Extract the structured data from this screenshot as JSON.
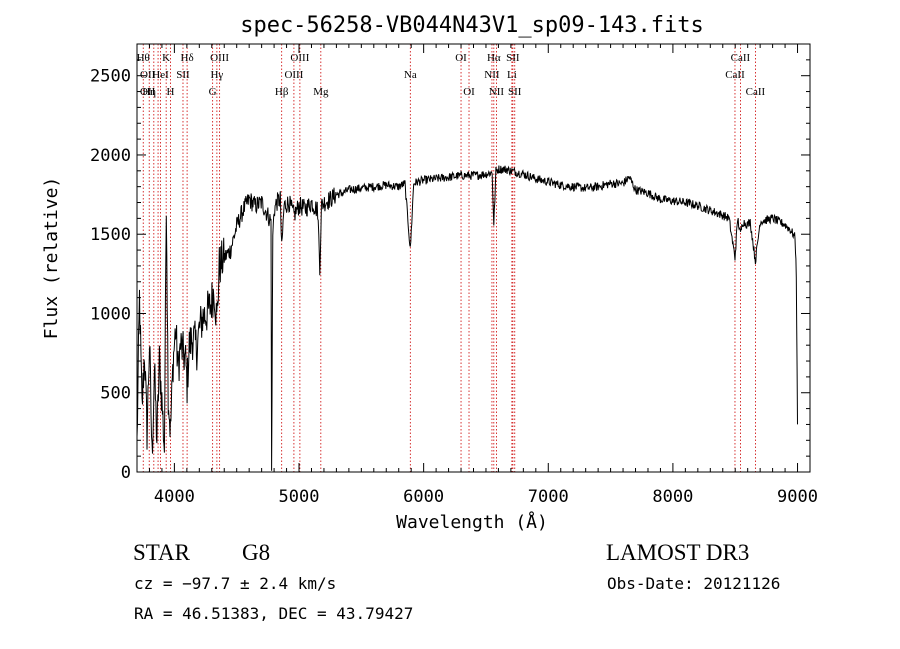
{
  "chart_data": {
    "type": "line",
    "title": "spec-56258-VB044N43V1_sp09-143.fits",
    "xlabel": "Wavelength (Å)",
    "ylabel": "Flux (relative)",
    "xlim": [
      3700,
      9100
    ],
    "ylim": [
      0,
      2700
    ],
    "xticks": [
      4000,
      5000,
      6000,
      7000,
      8000,
      9000
    ],
    "yticks": [
      0,
      500,
      1000,
      1500,
      2000,
      2500
    ],
    "grid": false,
    "series": [
      {
        "name": "flux",
        "x": [
          3700,
          3720,
          3740,
          3760,
          3780,
          3800,
          3820,
          3840,
          3860,
          3880,
          3900,
          3920,
          3935,
          3950,
          3968,
          3990,
          4010,
          4030,
          4050,
          4070,
          4090,
          4102,
          4120,
          4150,
          4180,
          4200,
          4230,
          4260,
          4290,
          4320,
          4340,
          4360,
          4400,
          4450,
          4500,
          4550,
          4600,
          4650,
          4700,
          4750,
          4775,
          4780,
          4790,
          4800,
          4820,
          4850,
          4861,
          4880,
          4920,
          4960,
          5000,
          5050,
          5100,
          5150,
          5167,
          5180,
          5200,
          5250,
          5300,
          5350,
          5400,
          5500,
          5600,
          5700,
          5800,
          5850,
          5893,
          5920,
          5950,
          6000,
          6100,
          6200,
          6300,
          6400,
          6500,
          6550,
          6563,
          6580,
          6600,
          6650,
          6700,
          6800,
          6900,
          7000,
          7100,
          7200,
          7300,
          7400,
          7500,
          7600,
          7650,
          7700,
          7800,
          7900,
          8000,
          8100,
          8200,
          8300,
          8400,
          8450,
          8498,
          8520,
          8542,
          8560,
          8600,
          8620,
          8662,
          8700,
          8750,
          8800,
          8850,
          8900,
          8950,
          8980,
          8990,
          9000
        ],
        "values": [
          180,
          1100,
          400,
          760,
          250,
          820,
          100,
          640,
          200,
          700,
          450,
          150,
          1750,
          500,
          250,
          700,
          900,
          650,
          800,
          750,
          700,
          550,
          800,
          850,
          780,
          900,
          980,
          1000,
          1050,
          1150,
          950,
          1300,
          1350,
          1400,
          1550,
          1650,
          1720,
          1680,
          1700,
          1620,
          1580,
          0,
          1500,
          1650,
          1700,
          1720,
          1400,
          1680,
          1700,
          1620,
          1680,
          1660,
          1700,
          1650,
          1300,
          1680,
          1700,
          1720,
          1750,
          1760,
          1780,
          1790,
          1800,
          1810,
          1800,
          1820,
          1400,
          1820,
          1830,
          1840,
          1850,
          1860,
          1870,
          1870,
          1880,
          1890,
          1550,
          1900,
          1910,
          1910,
          1900,
          1880,
          1850,
          1830,
          1810,
          1800,
          1790,
          1800,
          1820,
          1820,
          1860,
          1780,
          1760,
          1720,
          1710,
          1700,
          1680,
          1650,
          1620,
          1600,
          1350,
          1600,
          1500,
          1580,
          1560,
          1580,
          1330,
          1580,
          1590,
          1600,
          1580,
          1560,
          1520,
          1480,
          1250,
          300
        ],
        "noise_amplitude": 28
      }
    ],
    "lines": [
      {
        "wavelength": 3750,
        "label": "Hθ",
        "row": 0
      },
      {
        "wavelength": 3798,
        "label": "Hη",
        "row": 2
      },
      {
        "wavelength": 3835,
        "label": "",
        "row": 3
      },
      {
        "wavelength": 3869,
        "label": "",
        "row": 3
      },
      {
        "wavelength": 3889,
        "label": "HeI",
        "row": 1
      },
      {
        "wavelength": 3934,
        "label": "K",
        "row": 0
      },
      {
        "wavelength": 3969,
        "label": "H",
        "row": 2
      },
      {
        "wavelength": 4069,
        "label": "SII",
        "row": 1
      },
      {
        "wavelength": 4102,
        "label": "Hδ",
        "row": 0
      },
      {
        "wavelength": 4307,
        "label": "G",
        "row": 2
      },
      {
        "wavelength": 4341,
        "label": "Hγ",
        "row": 1
      },
      {
        "wavelength": 4363,
        "label": "OIII",
        "row": 0
      },
      {
        "wavelength": 4861,
        "label": "Hβ",
        "row": 2
      },
      {
        "wavelength": 4959,
        "label": "OIII",
        "row": 1
      },
      {
        "wavelength": 5007,
        "label": "OIII",
        "row": 0
      },
      {
        "wavelength": 5175,
        "label": "Mg",
        "row": 2
      },
      {
        "wavelength": 5893,
        "label": "Na",
        "row": 1
      },
      {
        "wavelength": 6300,
        "label": "OI",
        "row": 0
      },
      {
        "wavelength": 6364,
        "label": "OI",
        "row": 2
      },
      {
        "wavelength": 6548,
        "label": "NII",
        "row": 1
      },
      {
        "wavelength": 6563,
        "label": "Hα",
        "row": 0
      },
      {
        "wavelength": 6584,
        "label": "NII",
        "row": 2
      },
      {
        "wavelength": 6708,
        "label": "Li",
        "row": 1
      },
      {
        "wavelength": 6716,
        "label": "SII",
        "row": 0
      },
      {
        "wavelength": 6731,
        "label": "SII",
        "row": 2
      },
      {
        "wavelength": 8498,
        "label": "CaII",
        "row": 1
      },
      {
        "wavelength": 8542,
        "label": "CaII",
        "row": 0
      },
      {
        "wavelength": 8662,
        "label": "CaII",
        "row": 2
      }
    ],
    "extra_labels": [
      {
        "text": "OII",
        "row": 2
      },
      {
        "text": "OII",
        "row": 1
      }
    ]
  },
  "info": {
    "object_class": "STAR",
    "subclass": "G8",
    "survey": "LAMOST DR3",
    "velocity": "cz = −97.7 ± 2.4 km/s",
    "obs_date": "Obs-Date: 20121126",
    "coords": "RA =  46.51383, DEC =  43.79427"
  },
  "colors": {
    "spectrum": "#000000",
    "line_marker": "#cc0000",
    "axes": "#000000"
  }
}
